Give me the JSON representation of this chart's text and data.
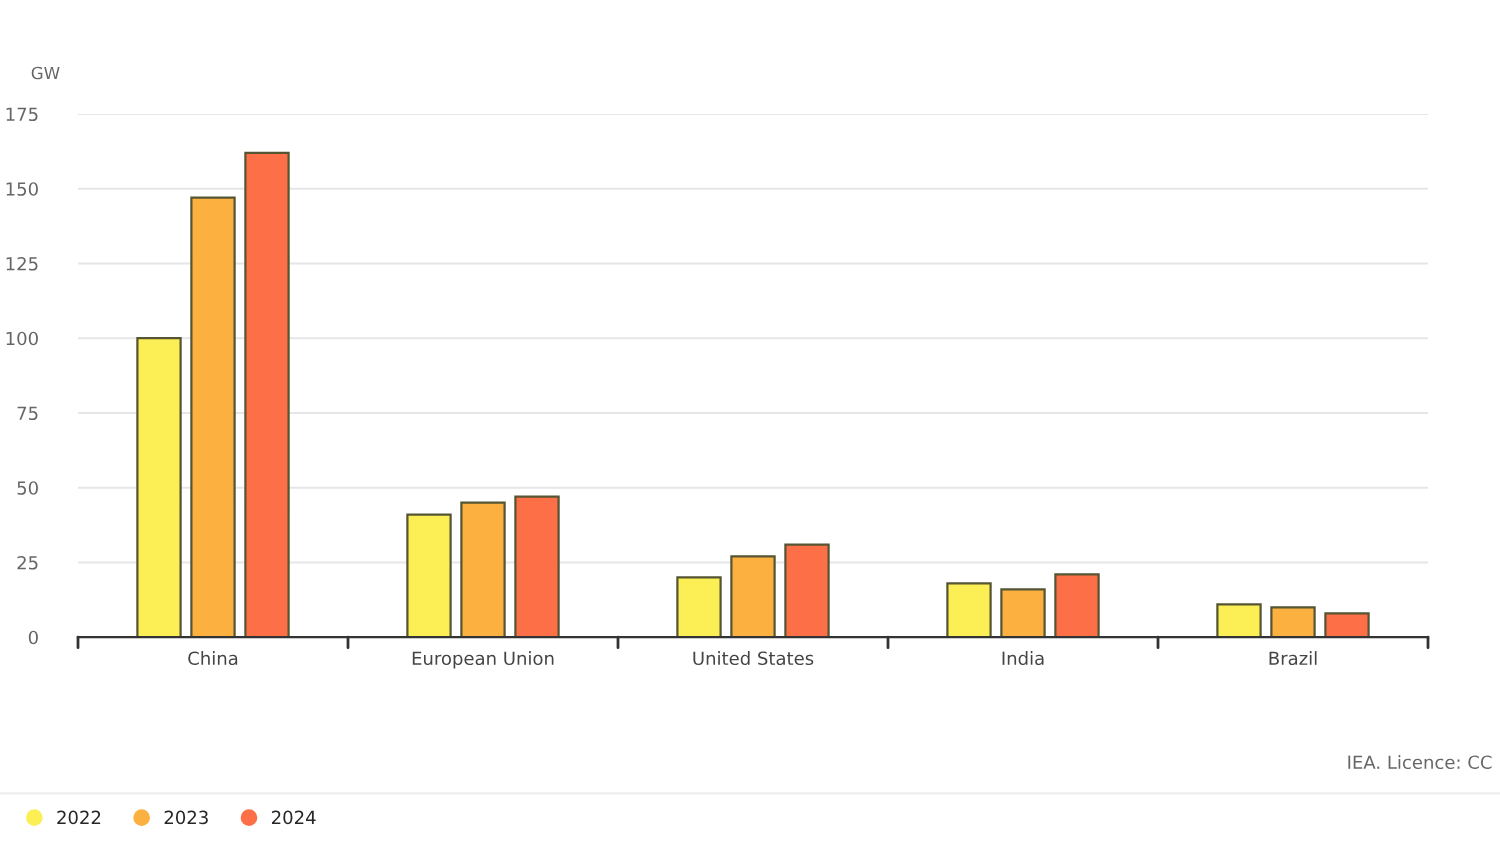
{
  "chart_data": {
    "type": "bar",
    "ylabel": "GW",
    "categories": [
      "China",
      "European Union",
      "United States",
      "India",
      "Brazil"
    ],
    "series": [
      {
        "name": "2022",
        "color": "#fcee55",
        "values": [
          100,
          41,
          20,
          18,
          11
        ]
      },
      {
        "name": "2023",
        "color": "#fbb040",
        "values": [
          147,
          45,
          27,
          16,
          10
        ]
      },
      {
        "name": "2024",
        "color": "#fd7047",
        "values": [
          162,
          47,
          31,
          21,
          8
        ]
      }
    ],
    "ylim": [
      0,
      175
    ],
    "yticks": [
      0,
      25,
      50,
      75,
      100,
      125,
      150,
      175
    ],
    "grid": "y",
    "legend": "bottom left",
    "annotations": [
      "IEA. Licence: CC"
    ]
  }
}
